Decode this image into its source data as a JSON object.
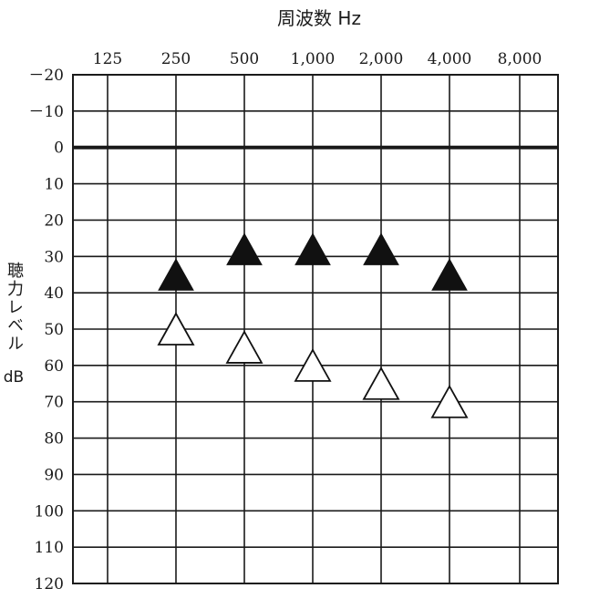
{
  "chart_data": {
    "type": "scatter",
    "title": "",
    "xlabel": "周波数 Hz",
    "ylabel_text": "聴力レベル",
    "ylabel_unit": "dB",
    "x_tick_labels": [
      "125",
      "250",
      "500",
      "1,000",
      "2,000",
      "4,000",
      "8,000"
    ],
    "x_values": [
      125,
      250,
      500,
      1000,
      2000,
      4000,
      8000
    ],
    "y_tick_labels": [
      "－20",
      "－10",
      "0",
      "10",
      "20",
      "30",
      "40",
      "50",
      "60",
      "70",
      "80",
      "90",
      "100",
      "110",
      "120"
    ],
    "ylim": [
      -20,
      120
    ],
    "y_inverted": true,
    "reference_line_y": 0,
    "grid": true,
    "series": [
      {
        "marker": "filled-triangle",
        "color": "#111111",
        "points": [
          {
            "x": 250,
            "y": 35
          },
          {
            "x": 500,
            "y": 28
          },
          {
            "x": 1000,
            "y": 28
          },
          {
            "x": 2000,
            "y": 28
          },
          {
            "x": 4000,
            "y": 35
          }
        ]
      },
      {
        "marker": "open-triangle",
        "color": "#111111",
        "points": [
          {
            "x": 250,
            "y": 50
          },
          {
            "x": 500,
            "y": 55
          },
          {
            "x": 1000,
            "y": 60
          },
          {
            "x": 2000,
            "y": 65
          },
          {
            "x": 4000,
            "y": 70
          }
        ]
      }
    ]
  }
}
